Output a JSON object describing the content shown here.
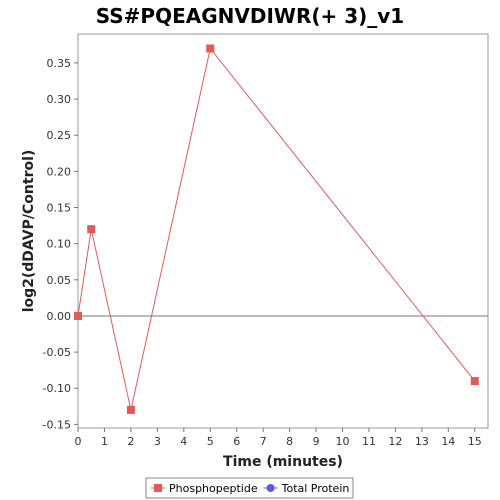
{
  "chart_data": {
    "type": "line",
    "title": "SS#PQEAGNVDIWR(+ 3)_v1",
    "xlabel": "Time (minutes)",
    "ylabel": "log2(dDAVP/Control)",
    "xlim": [
      0,
      15.5
    ],
    "ylim": [
      -0.155,
      0.39
    ],
    "xticks": [
      0,
      1,
      2,
      3,
      4,
      5,
      6,
      7,
      8,
      9,
      10,
      11,
      12,
      13,
      14,
      15
    ],
    "yticks": [
      -0.15,
      -0.1,
      -0.05,
      0.0,
      0.05,
      0.1,
      0.15,
      0.2,
      0.25,
      0.3,
      0.35
    ],
    "ytick_labels": [
      "-0.15",
      "-0.10",
      "-0.05",
      "0.00",
      "0.05",
      "0.10",
      "0.15",
      "0.20",
      "0.25",
      "0.30",
      "0.35"
    ],
    "grid": false,
    "legend_placement": "bottom",
    "series": [
      {
        "name": "Phosphopeptide",
        "color": "#e05a5a",
        "marker": "square",
        "x": [
          0,
          0.5,
          2,
          5,
          15
        ],
        "y": [
          0.0,
          0.12,
          -0.13,
          0.37,
          -0.09
        ]
      },
      {
        "name": "Total Protein",
        "color": "#5a5ae0",
        "marker": "circle",
        "x": [],
        "y": []
      }
    ]
  }
}
